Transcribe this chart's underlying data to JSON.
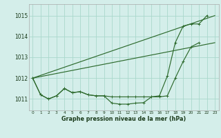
{
  "background_color": "#d4eeea",
  "grid_color": "#aad8cc",
  "line_color": "#2d6a2d",
  "title": "Graphe pression niveau de la mer (hPa)",
  "xlim": [
    -0.5,
    23.5
  ],
  "ylim": [
    1010.45,
    1015.55
  ],
  "yticks": [
    1011,
    1012,
    1013,
    1014,
    1015
  ],
  "xticks": [
    0,
    1,
    2,
    3,
    4,
    5,
    6,
    7,
    8,
    9,
    10,
    11,
    12,
    13,
    14,
    15,
    16,
    17,
    18,
    19,
    20,
    21,
    22,
    23
  ],
  "ref_line1_x": [
    0,
    23
  ],
  "ref_line1_y": [
    1012.0,
    1015.0
  ],
  "ref_line2_x": [
    0,
    23
  ],
  "ref_line2_y": [
    1012.0,
    1013.7
  ],
  "series_a_x": [
    0,
    1,
    2,
    3,
    4,
    5,
    6,
    7,
    8,
    9,
    10,
    11,
    12,
    13,
    14,
    15,
    16,
    17,
    18,
    19,
    20,
    21
  ],
  "series_a_y": [
    1012.0,
    1011.2,
    1011.0,
    1011.15,
    1011.5,
    1011.3,
    1011.35,
    1011.2,
    1011.15,
    1011.15,
    1010.8,
    1010.75,
    1010.75,
    1010.8,
    1010.82,
    1011.1,
    1011.1,
    1011.15,
    1012.0,
    1012.8,
    1013.5,
    1013.7
  ],
  "series_b_x": [
    0,
    1,
    2,
    3,
    4,
    5,
    6,
    7,
    8,
    9,
    10,
    11,
    12,
    13,
    14,
    15,
    16,
    17,
    18,
    19,
    20,
    21,
    22
  ],
  "series_b_y": [
    1012.0,
    1011.2,
    1011.0,
    1011.15,
    1011.5,
    1011.3,
    1011.35,
    1011.2,
    1011.15,
    1011.15,
    1011.1,
    1011.1,
    1011.1,
    1011.1,
    1011.1,
    1011.1,
    1011.15,
    1012.1,
    1013.7,
    1014.5,
    1014.6,
    1014.6,
    1015.0
  ]
}
